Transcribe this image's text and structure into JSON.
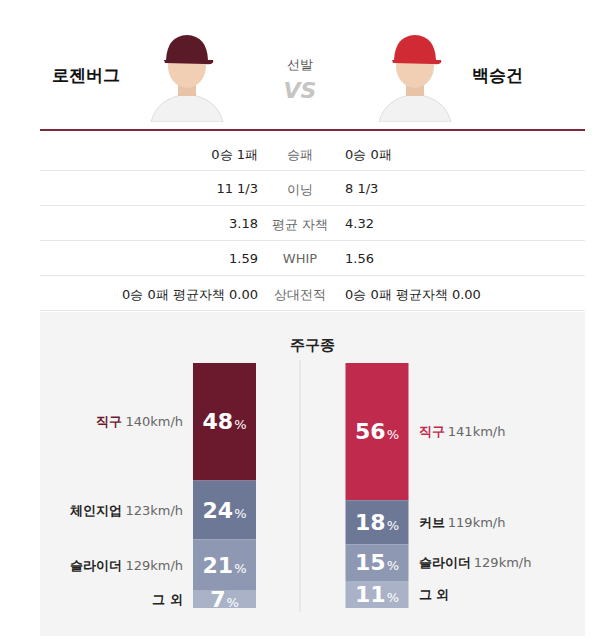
{
  "header": {
    "title": "선발",
    "vs": "VS",
    "left_pitcher": "로젠버그",
    "right_pitcher": "백승건"
  },
  "stats": {
    "rows": [
      {
        "label": "승패",
        "left": "0승 1패",
        "right": "0승 0패"
      },
      {
        "label": "이닝",
        "left": "11 1/3",
        "right": "8 1/3"
      },
      {
        "label": "평균 자책",
        "left": "3.18",
        "right": "4.32"
      },
      {
        "label": "WHIP",
        "left": "1.59",
        "right": "1.56"
      },
      {
        "label": "상대전적",
        "left": "0승 0패 평균자책 0.00",
        "right": "0승 0패 평균자책 0.00"
      }
    ]
  },
  "pitch_mix_title": "주구종",
  "chart_data": [
    {
      "type": "bar",
      "stacked": true,
      "data_labels": true,
      "tick_labels": false,
      "categories": [
        "직구",
        "체인지업",
        "슬라이더",
        "그 외"
      ],
      "speeds": [
        "140km/h",
        "123km/h",
        "129km/h",
        null
      ],
      "values": [
        48,
        24,
        21,
        7
      ],
      "value_labels": [
        "48%",
        "24%",
        "21%",
        "7%"
      ],
      "colors": [
        "#6b1a2e",
        "#6c7896",
        "#8e98b3",
        "#aab2c8"
      ],
      "ylim": [
        0,
        100
      ]
    },
    {
      "type": "bar",
      "stacked": true,
      "data_labels": true,
      "tick_labels": false,
      "categories": [
        "직구",
        "커브",
        "슬라이더",
        "그 외"
      ],
      "speeds": [
        "141km/h",
        "119km/h",
        "129km/h",
        null
      ],
      "values": [
        56,
        18,
        15,
        11
      ],
      "value_labels": [
        "56%",
        "18%",
        "15%",
        "11%"
      ],
      "colors": [
        "#c02a4c",
        "#6c7896",
        "#8e98b3",
        "#aab2c8"
      ],
      "ylim": [
        0,
        100
      ]
    }
  ]
}
